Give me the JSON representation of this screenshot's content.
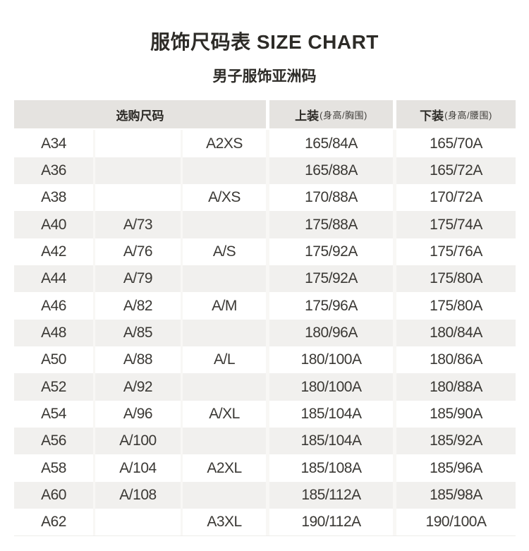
{
  "title": "服饰尺码表 SIZE CHART",
  "subtitle": "男子服饰亚洲码",
  "table": {
    "header": {
      "purchase_size": "选购尺码",
      "tops_label": "上装",
      "tops_note": "(身高/胸围)",
      "bottoms_label": "下装",
      "bottoms_note": "(身高/腰围)"
    },
    "columns": [
      "a_code",
      "numeric_size",
      "letter_size",
      "tops_height_chest",
      "bottoms_height_waist"
    ],
    "rows": [
      [
        "A34",
        "",
        "A2XS",
        "165/84A",
        "165/70A"
      ],
      [
        "A36",
        "",
        "",
        "165/88A",
        "165/72A"
      ],
      [
        "A38",
        "",
        "A/XS",
        "170/88A",
        "170/72A"
      ],
      [
        "A40",
        "A/73",
        "",
        "175/88A",
        "175/74A"
      ],
      [
        "A42",
        "A/76",
        "A/S",
        "175/92A",
        "175/76A"
      ],
      [
        "A44",
        "A/79",
        "",
        "175/92A",
        "175/80A"
      ],
      [
        "A46",
        "A/82",
        "A/M",
        "175/96A",
        "175/80A"
      ],
      [
        "A48",
        "A/85",
        "",
        "180/96A",
        "180/84A"
      ],
      [
        "A50",
        "A/88",
        "A/L",
        "180/100A",
        "180/86A"
      ],
      [
        "A52",
        "A/92",
        "",
        "180/100A",
        "180/88A"
      ],
      [
        "A54",
        "A/96",
        "A/XL",
        "185/104A",
        "185/90A"
      ],
      [
        "A56",
        "A/100",
        "",
        "185/104A",
        "185/92A"
      ],
      [
        "A58",
        "A/104",
        "A2XL",
        "185/108A",
        "185/96A"
      ],
      [
        "A60",
        "A/108",
        "",
        "185/112A",
        "185/98A"
      ],
      [
        "A62",
        "",
        "A3XL",
        "190/112A",
        "190/100A"
      ]
    ]
  },
  "colors": {
    "page_bg": "#ffffff",
    "title_color": "#2d2b27",
    "header_bg": "#e5e3e0",
    "row_bg": "#ffffff",
    "row_alt_bg": "#f1f0ee",
    "divider": "#f8f7f5",
    "cell_color": "#3a3834"
  }
}
